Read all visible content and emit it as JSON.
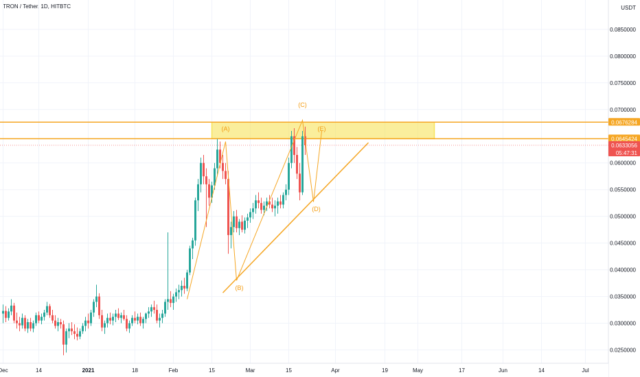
{
  "header": {
    "symbol_title": "TRON / Tether, 1D, HITBTC"
  },
  "colors": {
    "up": "#26a69a",
    "down": "#ef5350",
    "accent": "#f5a623",
    "zone": "#f7e35a",
    "grid": "#f0f3fa",
    "axis": "#e0e3eb"
  },
  "chart_data": {
    "type": "candlestick",
    "title": "",
    "xlabel": "",
    "ylabel": "",
    "currency_label": "USDT",
    "ylim": [
      0.0225,
      0.0895
    ],
    "y_ticks": [
      0.025,
      0.03,
      0.035,
      0.04,
      0.045,
      0.05,
      0.055,
      0.06,
      0.07,
      0.075,
      0.08,
      0.085
    ],
    "y_tick_labels": [
      "0.0250000",
      "0.0300000",
      "0.0350000",
      "0.0400000",
      "0.0450000",
      "0.0500000",
      "0.0550000",
      "0.0600000",
      "0.0700000",
      "0.0750000",
      "0.0800000",
      "0.0850000"
    ],
    "x_ticks": [
      {
        "day": 0,
        "label": "Dec"
      },
      {
        "day": 13,
        "label": "14"
      },
      {
        "day": 31,
        "label": "2021"
      },
      {
        "day": 48,
        "label": "18"
      },
      {
        "day": 62,
        "label": "Feb"
      },
      {
        "day": 76,
        "label": "15"
      },
      {
        "day": 90,
        "label": "Mar"
      },
      {
        "day": 104,
        "label": "15"
      },
      {
        "day": 121,
        "label": "Apr"
      },
      {
        "day": 139,
        "label": "19"
      },
      {
        "day": 151,
        "label": "May"
      },
      {
        "day": 167,
        "label": "17"
      },
      {
        "day": 182,
        "label": "Jun"
      },
      {
        "day": 196,
        "label": "14"
      },
      {
        "day": 212,
        "label": "Jul"
      }
    ],
    "price_tags": [
      {
        "value": 0.0676284,
        "label": "0.0676284",
        "color": "#f5a623"
      },
      {
        "value": 0.0645424,
        "label": "0.0645424",
        "color": "#f5a623"
      },
      {
        "value": 0.0633056,
        "label": "0.0633056",
        "color": "#ef5350",
        "sub": "05:47:31"
      }
    ],
    "zone": {
      "x_start_day": 76,
      "x_end_day": 157,
      "y_low": 0.0645424,
      "y_high": 0.0676284
    },
    "horizontal_lines": [
      0.0676284,
      0.0645424
    ],
    "trendlines": [
      {
        "from": {
          "day": 80,
          "value": 0.0357
        },
        "to": {
          "day": 133,
          "value": 0.0638
        }
      }
    ],
    "wave_path": [
      {
        "day": 67,
        "value": 0.0345
      },
      {
        "day": 81,
        "value": 0.064
      },
      {
        "day": 85,
        "value": 0.038
      },
      {
        "day": 109,
        "value": 0.068
      },
      {
        "day": 113,
        "value": 0.0527
      },
      {
        "day": 116,
        "value": 0.066
      }
    ],
    "wave_labels": [
      {
        "text": "(A)",
        "day": 81,
        "value": 0.066
      },
      {
        "text": "(B)",
        "day": 86,
        "value": 0.0362
      },
      {
        "text": "(C)",
        "day": 109,
        "value": 0.0705
      },
      {
        "text": "(D)",
        "day": 114,
        "value": 0.051
      },
      {
        "text": "(E)",
        "day": 116,
        "value": 0.066
      }
    ],
    "candles": [
      [
        0.0318,
        0.0335,
        0.03,
        0.0323
      ],
      [
        0.0323,
        0.0332,
        0.0302,
        0.031
      ],
      [
        0.031,
        0.0328,
        0.0305,
        0.0322
      ],
      [
        0.0322,
        0.0345,
        0.0315,
        0.0333
      ],
      [
        0.0333,
        0.0338,
        0.03,
        0.0305
      ],
      [
        0.0305,
        0.032,
        0.029,
        0.03
      ],
      [
        0.03,
        0.0312,
        0.0285,
        0.0296
      ],
      [
        0.0296,
        0.0318,
        0.029,
        0.031
      ],
      [
        0.031,
        0.0315,
        0.0285,
        0.029
      ],
      [
        0.029,
        0.0308,
        0.0282,
        0.0302
      ],
      [
        0.0302,
        0.031,
        0.0285,
        0.029
      ],
      [
        0.029,
        0.0305,
        0.0283,
        0.03
      ],
      [
        0.03,
        0.032,
        0.0295,
        0.0315
      ],
      [
        0.0315,
        0.0322,
        0.03,
        0.0305
      ],
      [
        0.0305,
        0.0318,
        0.0298,
        0.0312
      ],
      [
        0.0312,
        0.0325,
        0.0305,
        0.032
      ],
      [
        0.032,
        0.034,
        0.0315,
        0.0332
      ],
      [
        0.0332,
        0.0336,
        0.031,
        0.0315
      ],
      [
        0.0315,
        0.0325,
        0.03,
        0.0305
      ],
      [
        0.0305,
        0.0315,
        0.029,
        0.0295
      ],
      [
        0.0295,
        0.031,
        0.0285,
        0.0302
      ],
      [
        0.0302,
        0.0308,
        0.029,
        0.0298
      ],
      [
        0.0298,
        0.0305,
        0.024,
        0.026
      ],
      [
        0.026,
        0.029,
        0.0245,
        0.0285
      ],
      [
        0.0285,
        0.03,
        0.0272,
        0.029
      ],
      [
        0.029,
        0.0302,
        0.0278,
        0.0285
      ],
      [
        0.0285,
        0.0298,
        0.027,
        0.028
      ],
      [
        0.028,
        0.0292,
        0.0268,
        0.0275
      ],
      [
        0.0275,
        0.029,
        0.027,
        0.0285
      ],
      [
        0.0285,
        0.03,
        0.028,
        0.0295
      ],
      [
        0.0295,
        0.0312,
        0.0285,
        0.0305
      ],
      [
        0.0305,
        0.0318,
        0.029,
        0.03
      ],
      [
        0.03,
        0.0325,
        0.0295,
        0.032
      ],
      [
        0.032,
        0.0345,
        0.0312,
        0.034
      ],
      [
        0.034,
        0.0372,
        0.033,
        0.035
      ],
      [
        0.035,
        0.0356,
        0.0308,
        0.0315
      ],
      [
        0.0315,
        0.0325,
        0.0285,
        0.0292
      ],
      [
        0.0292,
        0.0305,
        0.028,
        0.03
      ],
      [
        0.03,
        0.0318,
        0.0292,
        0.031
      ],
      [
        0.031,
        0.032,
        0.0298,
        0.0305
      ],
      [
        0.0305,
        0.0318,
        0.0296,
        0.0312
      ],
      [
        0.0312,
        0.0325,
        0.0302,
        0.0318
      ],
      [
        0.0318,
        0.0328,
        0.0306,
        0.031
      ],
      [
        0.031,
        0.032,
        0.03,
        0.0315
      ],
      [
        0.0315,
        0.0325,
        0.0305,
        0.0308
      ],
      [
        0.0308,
        0.0315,
        0.0285,
        0.029
      ],
      [
        0.029,
        0.0305,
        0.0282,
        0.03
      ],
      [
        0.03,
        0.0315,
        0.0295,
        0.031
      ],
      [
        0.031,
        0.0322,
        0.03,
        0.0305
      ],
      [
        0.0305,
        0.0318,
        0.0298,
        0.0312
      ],
      [
        0.0312,
        0.032,
        0.0295,
        0.03
      ],
      [
        0.03,
        0.0312,
        0.029,
        0.0308
      ],
      [
        0.0308,
        0.032,
        0.03,
        0.0318
      ],
      [
        0.0318,
        0.033,
        0.031,
        0.0322
      ],
      [
        0.0322,
        0.0335,
        0.0312,
        0.033
      ],
      [
        0.033,
        0.0342,
        0.0318,
        0.0325
      ],
      [
        0.0325,
        0.0335,
        0.03,
        0.0305
      ],
      [
        0.0305,
        0.0318,
        0.0292,
        0.031
      ],
      [
        0.031,
        0.0325,
        0.03,
        0.0318
      ],
      [
        0.0318,
        0.0345,
        0.0312,
        0.034
      ],
      [
        0.034,
        0.047,
        0.0325,
        0.0345
      ],
      [
        0.0345,
        0.036,
        0.033,
        0.0338
      ],
      [
        0.0338,
        0.0355,
        0.0325,
        0.035
      ],
      [
        0.035,
        0.0365,
        0.034,
        0.0358
      ],
      [
        0.0358,
        0.0372,
        0.0345,
        0.0362
      ],
      [
        0.0362,
        0.038,
        0.035,
        0.037
      ],
      [
        0.037,
        0.0385,
        0.0355,
        0.0365
      ],
      [
        0.0365,
        0.04,
        0.036,
        0.0395
      ],
      [
        0.0395,
        0.0445,
        0.039,
        0.044
      ],
      [
        0.044,
        0.046,
        0.042,
        0.0455
      ],
      [
        0.0455,
        0.0535,
        0.0445,
        0.053
      ],
      [
        0.053,
        0.057,
        0.051,
        0.056
      ],
      [
        0.056,
        0.061,
        0.0545,
        0.06
      ],
      [
        0.06,
        0.0615,
        0.056,
        0.0575
      ],
      [
        0.0575,
        0.059,
        0.048,
        0.056
      ],
      [
        0.056,
        0.057,
        0.052,
        0.0535
      ],
      [
        0.0535,
        0.0565,
        0.0525,
        0.0558
      ],
      [
        0.0558,
        0.06,
        0.055,
        0.059
      ],
      [
        0.059,
        0.0645,
        0.0575,
        0.0625
      ],
      [
        0.0625,
        0.064,
        0.059,
        0.06
      ],
      [
        0.06,
        0.0615,
        0.057,
        0.0585
      ],
      [
        0.0585,
        0.06,
        0.056,
        0.057
      ],
      [
        0.057,
        0.0585,
        0.043,
        0.0465
      ],
      [
        0.0465,
        0.049,
        0.044,
        0.048
      ],
      [
        0.048,
        0.051,
        0.047,
        0.05
      ],
      [
        0.05,
        0.0512,
        0.047,
        0.0478
      ],
      [
        0.0478,
        0.0495,
        0.0465,
        0.049
      ],
      [
        0.049,
        0.0502,
        0.047,
        0.0475
      ],
      [
        0.0475,
        0.0498,
        0.0468,
        0.0492
      ],
      [
        0.0492,
        0.0505,
        0.0478,
        0.0498
      ],
      [
        0.0498,
        0.0515,
        0.0488,
        0.0508
      ],
      [
        0.0508,
        0.0525,
        0.0495,
        0.0515
      ],
      [
        0.0515,
        0.054,
        0.0505,
        0.053
      ],
      [
        0.053,
        0.0545,
        0.0515,
        0.0525
      ],
      [
        0.0525,
        0.0535,
        0.0505,
        0.0512
      ],
      [
        0.0512,
        0.0528,
        0.0502,
        0.052
      ],
      [
        0.052,
        0.0535,
        0.051,
        0.0528
      ],
      [
        0.0528,
        0.054,
        0.0515,
        0.0522
      ],
      [
        0.0522,
        0.0535,
        0.0508,
        0.0515
      ],
      [
        0.0515,
        0.053,
        0.05,
        0.052
      ],
      [
        0.052,
        0.0535,
        0.0505,
        0.0528
      ],
      [
        0.0528,
        0.054,
        0.0515,
        0.0522
      ],
      [
        0.0522,
        0.0545,
        0.0515,
        0.054
      ],
      [
        0.054,
        0.056,
        0.053,
        0.055
      ],
      [
        0.055,
        0.061,
        0.054,
        0.06
      ],
      [
        0.06,
        0.066,
        0.059,
        0.065
      ],
      [
        0.065,
        0.0665,
        0.06,
        0.0615
      ],
      [
        0.0615,
        0.063,
        0.057,
        0.058
      ],
      [
        0.058,
        0.06,
        0.053,
        0.0545
      ],
      [
        0.0545,
        0.066,
        0.054,
        0.065
      ],
      [
        0.065,
        0.0668,
        0.0615,
        0.0633
      ]
    ],
    "candle_start_day": 0,
    "candle_day_step": 1
  }
}
